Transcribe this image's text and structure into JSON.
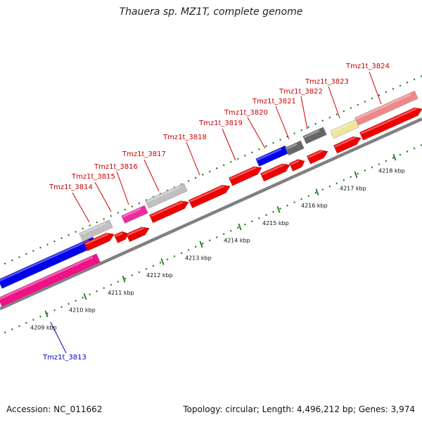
{
  "title": "Thauera sp. MZ1T, complete genome",
  "footer": {
    "accession": "Accession: NC_011662",
    "summary": "Topology: circular; Length: 4,496,212 bp; Genes: 3,974"
  },
  "colors": {
    "backbone": "#808080",
    "tick": "#1a7a1a",
    "label_forward": "#cc0000",
    "label_reverse": "#0000cc"
  },
  "scale_ticks": [
    {
      "label": "4209 kbp",
      "kbp": 4209
    },
    {
      "label": "4210 kbp",
      "kbp": 4210
    },
    {
      "label": "4211 kbp",
      "kbp": 4211
    },
    {
      "label": "4212 kbp",
      "kbp": 4212
    },
    {
      "label": "4213 kbp",
      "kbp": 4213
    },
    {
      "label": "4214 kbp",
      "kbp": 4214
    },
    {
      "label": "4215 kbp",
      "kbp": 4215
    },
    {
      "label": "4216 kbp",
      "kbp": 4216
    },
    {
      "label": "4217 kbp",
      "kbp": 4217
    },
    {
      "label": "4218 kbp",
      "kbp": 4218
    }
  ],
  "gene_labels": [
    {
      "text": "Tmz1t_3813",
      "strand": "reverse"
    },
    {
      "text": "Tmz1t_3814",
      "strand": "forward"
    },
    {
      "text": "Tmz1t_3815",
      "strand": "forward"
    },
    {
      "text": "Tmz1t_3816",
      "strand": "forward"
    },
    {
      "text": "Tmz1t_3817",
      "strand": "forward"
    },
    {
      "text": "Tmz1t_3818",
      "strand": "forward"
    },
    {
      "text": "Tmz1t_3819",
      "strand": "forward"
    },
    {
      "text": "Tmz1t_3820",
      "strand": "forward"
    },
    {
      "text": "Tmz1t_3821",
      "strand": "forward"
    },
    {
      "text": "Tmz1t_3822",
      "strand": "forward"
    },
    {
      "text": "Tmz1t_3823",
      "strand": "forward"
    },
    {
      "text": "Tmz1t_3824",
      "strand": "forward"
    }
  ]
}
